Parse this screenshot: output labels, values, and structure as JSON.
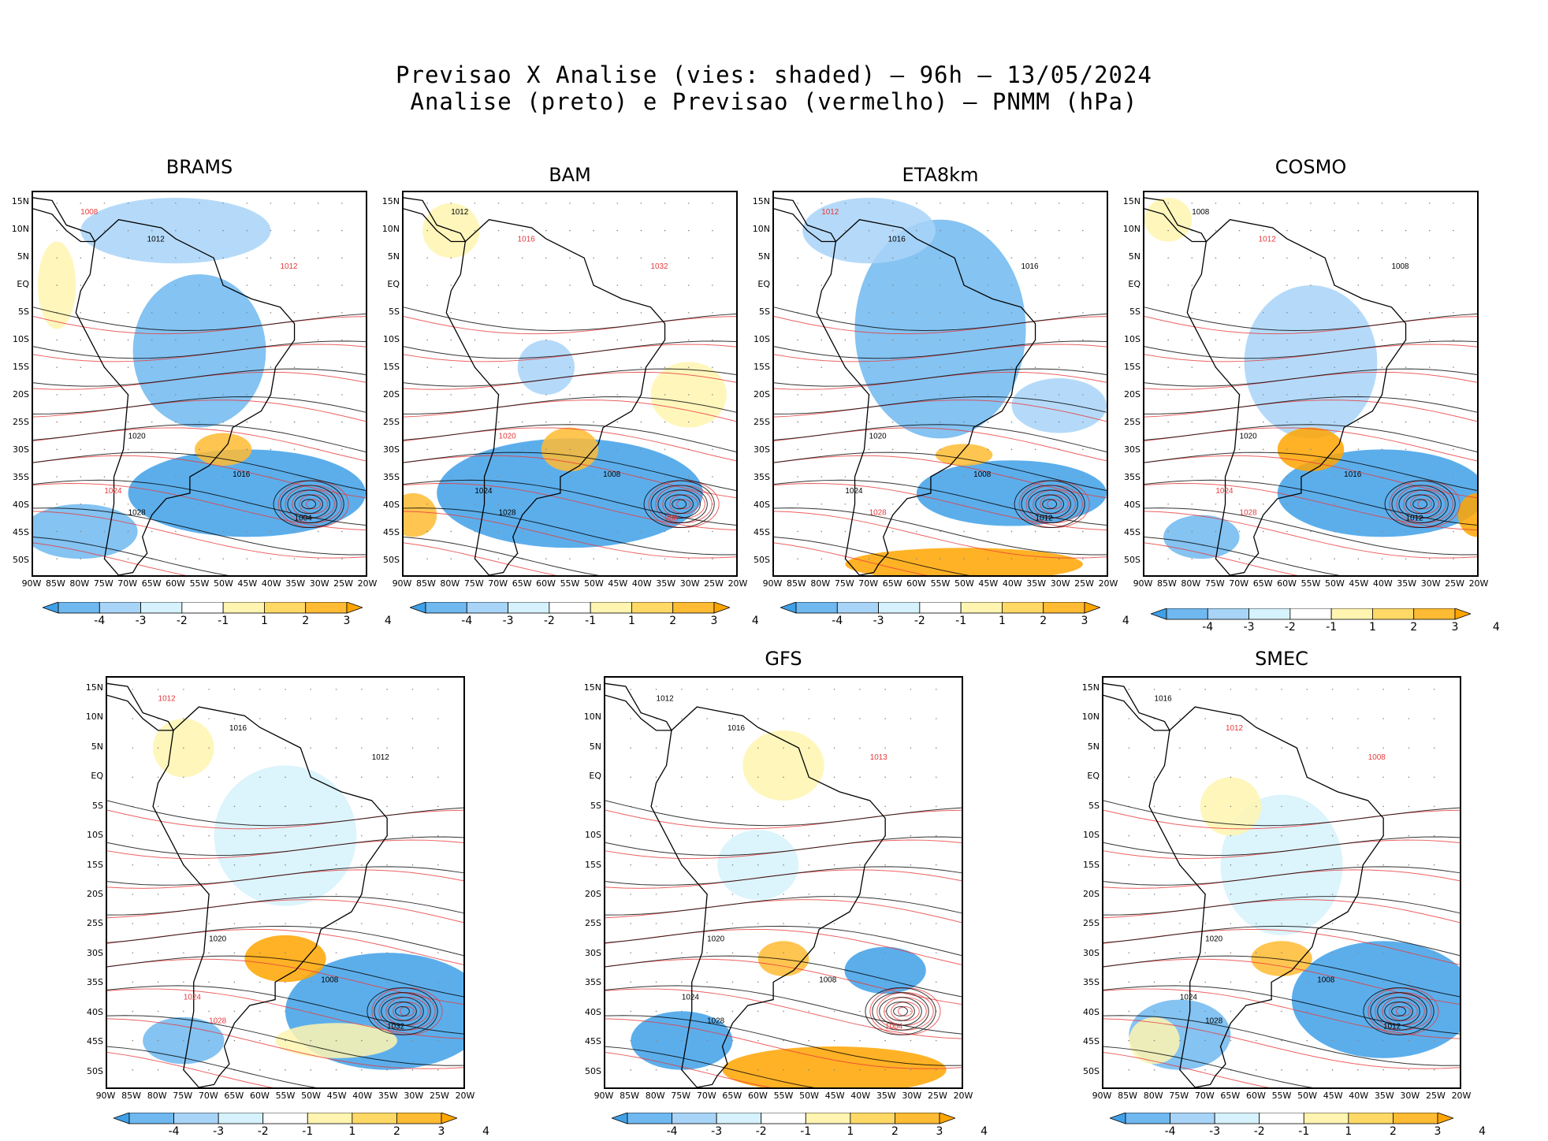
{
  "title": {
    "line1": "Previsao X Analise (vies: shaded) – 96h – 13/05/2024",
    "line2": "Analise (preto) e Previsao (vermelho) – PNMM (hPa)"
  },
  "lat_labels": [
    "15N",
    "10N",
    "5N",
    "EQ",
    "5S",
    "10S",
    "15S",
    "20S",
    "25S",
    "30S",
    "35S",
    "40S",
    "45S",
    "50S"
  ],
  "lon_labels": [
    "90W",
    "85W",
    "80W",
    "75W",
    "70W",
    "65W",
    "60W",
    "55W",
    "50W",
    "45W",
    "40W",
    "35W",
    "30W",
    "25W",
    "20W"
  ],
  "colorbar": {
    "labels": [
      "-4",
      "-3",
      "-2",
      "-1",
      "1",
      "2",
      "3",
      "4"
    ],
    "colors": [
      "#3fa0e8",
      "#6fb8f0",
      "#a8d4f8",
      "#d6f2fc",
      "#ffffff",
      "#fff4b0",
      "#ffd966",
      "#ffbb33",
      "#ffa500"
    ]
  },
  "colors": {
    "analysis_contour": "#000000",
    "forecast_contour": "#e8383a",
    "coast": "#000000"
  },
  "panels": [
    {
      "id": "brams",
      "title": "BRAMS",
      "labels": [
        {
          "t": "1012",
          "c": "k"
        },
        {
          "t": "1008",
          "c": "r"
        },
        {
          "t": "1016",
          "c": "k"
        },
        {
          "t": "1020",
          "c": "k"
        },
        {
          "t": "1024",
          "c": "r"
        },
        {
          "t": "1028",
          "c": "k"
        },
        {
          "t": "1004",
          "c": "k"
        },
        {
          "t": "1012",
          "c": "r"
        }
      ]
    },
    {
      "id": "bam",
      "title": "BAM",
      "labels": [
        {
          "t": "1016",
          "c": "r"
        },
        {
          "t": "1012",
          "c": "k"
        },
        {
          "t": "1008",
          "c": "k"
        },
        {
          "t": "1020",
          "c": "r"
        },
        {
          "t": "1024",
          "c": "k"
        },
        {
          "t": "1028",
          "c": "k"
        },
        {
          "t": "988",
          "c": "r"
        },
        {
          "t": "1032",
          "c": "r"
        }
      ]
    },
    {
      "id": "eta8km",
      "title": "ETA8km",
      "labels": [
        {
          "t": "1016",
          "c": "k"
        },
        {
          "t": "1012",
          "c": "r"
        },
        {
          "t": "1008",
          "c": "k"
        },
        {
          "t": "1020",
          "c": "k"
        },
        {
          "t": "1024",
          "c": "k"
        },
        {
          "t": "1028",
          "c": "r"
        },
        {
          "t": "1012",
          "c": "k"
        },
        {
          "t": "1016",
          "c": "k"
        }
      ]
    },
    {
      "id": "cosmo",
      "title": "COSMO",
      "labels": [
        {
          "t": "1012",
          "c": "r"
        },
        {
          "t": "1008",
          "c": "k"
        },
        {
          "t": "1016",
          "c": "k"
        },
        {
          "t": "1020",
          "c": "k"
        },
        {
          "t": "1024",
          "c": "r"
        },
        {
          "t": "1028",
          "c": "r"
        },
        {
          "t": "1012",
          "c": "k"
        },
        {
          "t": "1008",
          "c": "k"
        }
      ]
    },
    {
      "id": "bottom-left",
      "title": "",
      "labels": [
        {
          "t": "1016",
          "c": "k"
        },
        {
          "t": "1012",
          "c": "r"
        },
        {
          "t": "1008",
          "c": "k"
        },
        {
          "t": "1020",
          "c": "k"
        },
        {
          "t": "1024",
          "c": "r"
        },
        {
          "t": "1028",
          "c": "r"
        },
        {
          "t": "1032",
          "c": "k"
        },
        {
          "t": "1012",
          "c": "k"
        }
      ]
    },
    {
      "id": "gfs",
      "title": "GFS",
      "labels": [
        {
          "t": "1016",
          "c": "k"
        },
        {
          "t": "1012",
          "c": "k"
        },
        {
          "t": "1008",
          "c": "k"
        },
        {
          "t": "1020",
          "c": "k"
        },
        {
          "t": "1024",
          "c": "k"
        },
        {
          "t": "1028",
          "c": "k"
        },
        {
          "t": "1004",
          "c": "r"
        },
        {
          "t": "1013",
          "c": "r"
        }
      ]
    },
    {
      "id": "smec",
      "title": "SMEC",
      "labels": [
        {
          "t": "1012",
          "c": "r"
        },
        {
          "t": "1016",
          "c": "k"
        },
        {
          "t": "1008",
          "c": "k"
        },
        {
          "t": "1020",
          "c": "k"
        },
        {
          "t": "1024",
          "c": "k"
        },
        {
          "t": "1028",
          "c": "k"
        },
        {
          "t": "1012",
          "c": "k"
        },
        {
          "t": "1008",
          "c": "r"
        }
      ]
    }
  ]
}
